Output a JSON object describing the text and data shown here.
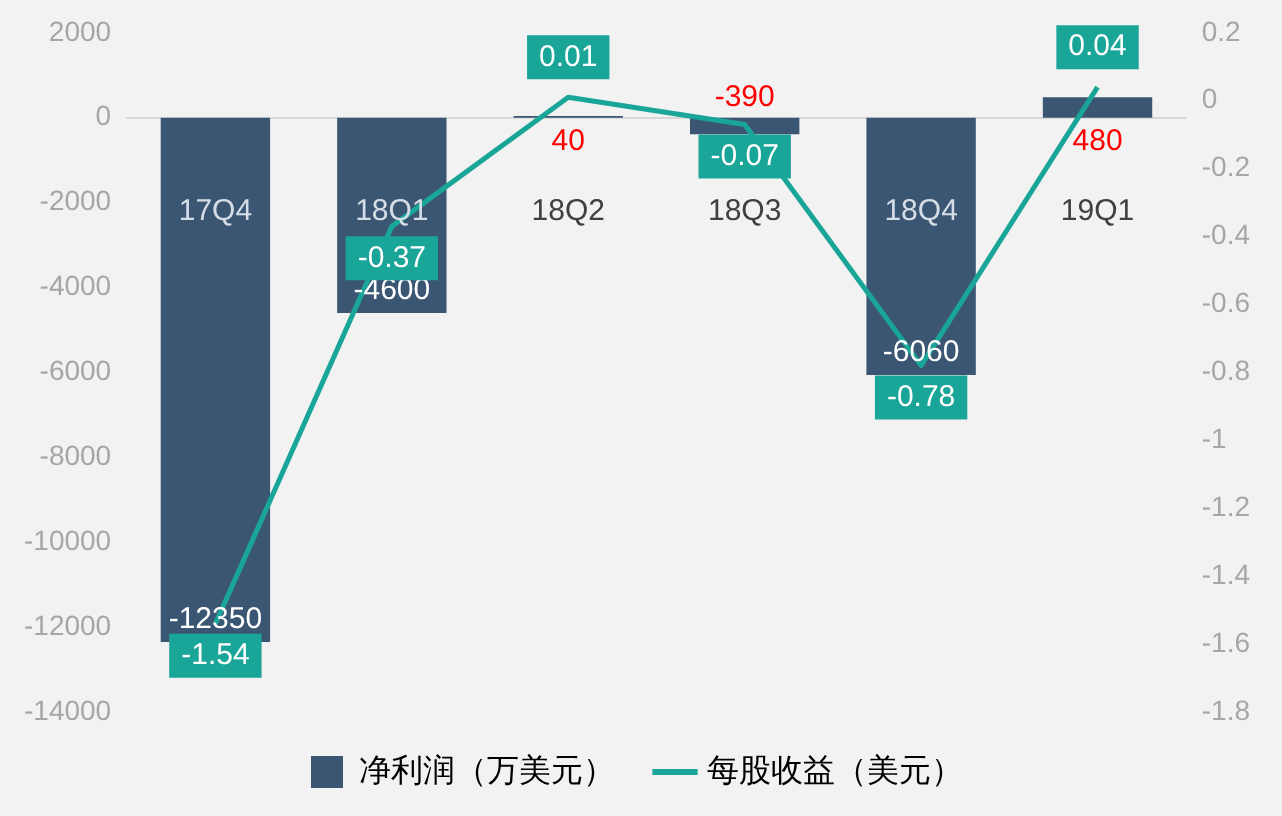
{
  "chart_data": {
    "type": "bar",
    "categories": [
      "17Q4",
      "18Q1",
      "18Q2",
      "18Q3",
      "18Q4",
      "19Q1"
    ],
    "series": [
      {
        "name": "净利润（万美元）",
        "color": "#3b5673",
        "values": [
          -12350,
          -4600,
          40,
          -390,
          -6060,
          480
        ]
      },
      {
        "name": "每股收益（美元）",
        "type": "line",
        "axis": "y2",
        "color": "#19a598",
        "values": [
          -1.54,
          -0.37,
          0.01,
          -0.07,
          -0.78,
          0.04
        ]
      }
    ],
    "ylim": [
      -14000,
      2000
    ],
    "yticks": [
      -14000,
      -12000,
      -10000,
      -8000,
      -6000,
      -4000,
      -2000,
      0,
      2000
    ],
    "y2lim": [
      -1.8,
      0.2
    ],
    "y2ticks": [
      -1.8,
      -1.6,
      -1.4,
      -1.2,
      -1,
      -0.8,
      -0.6,
      -0.4,
      -0.2,
      0,
      0.2
    ],
    "grid": false,
    "legend": "bottom",
    "data_labels": true,
    "marker": "none"
  }
}
